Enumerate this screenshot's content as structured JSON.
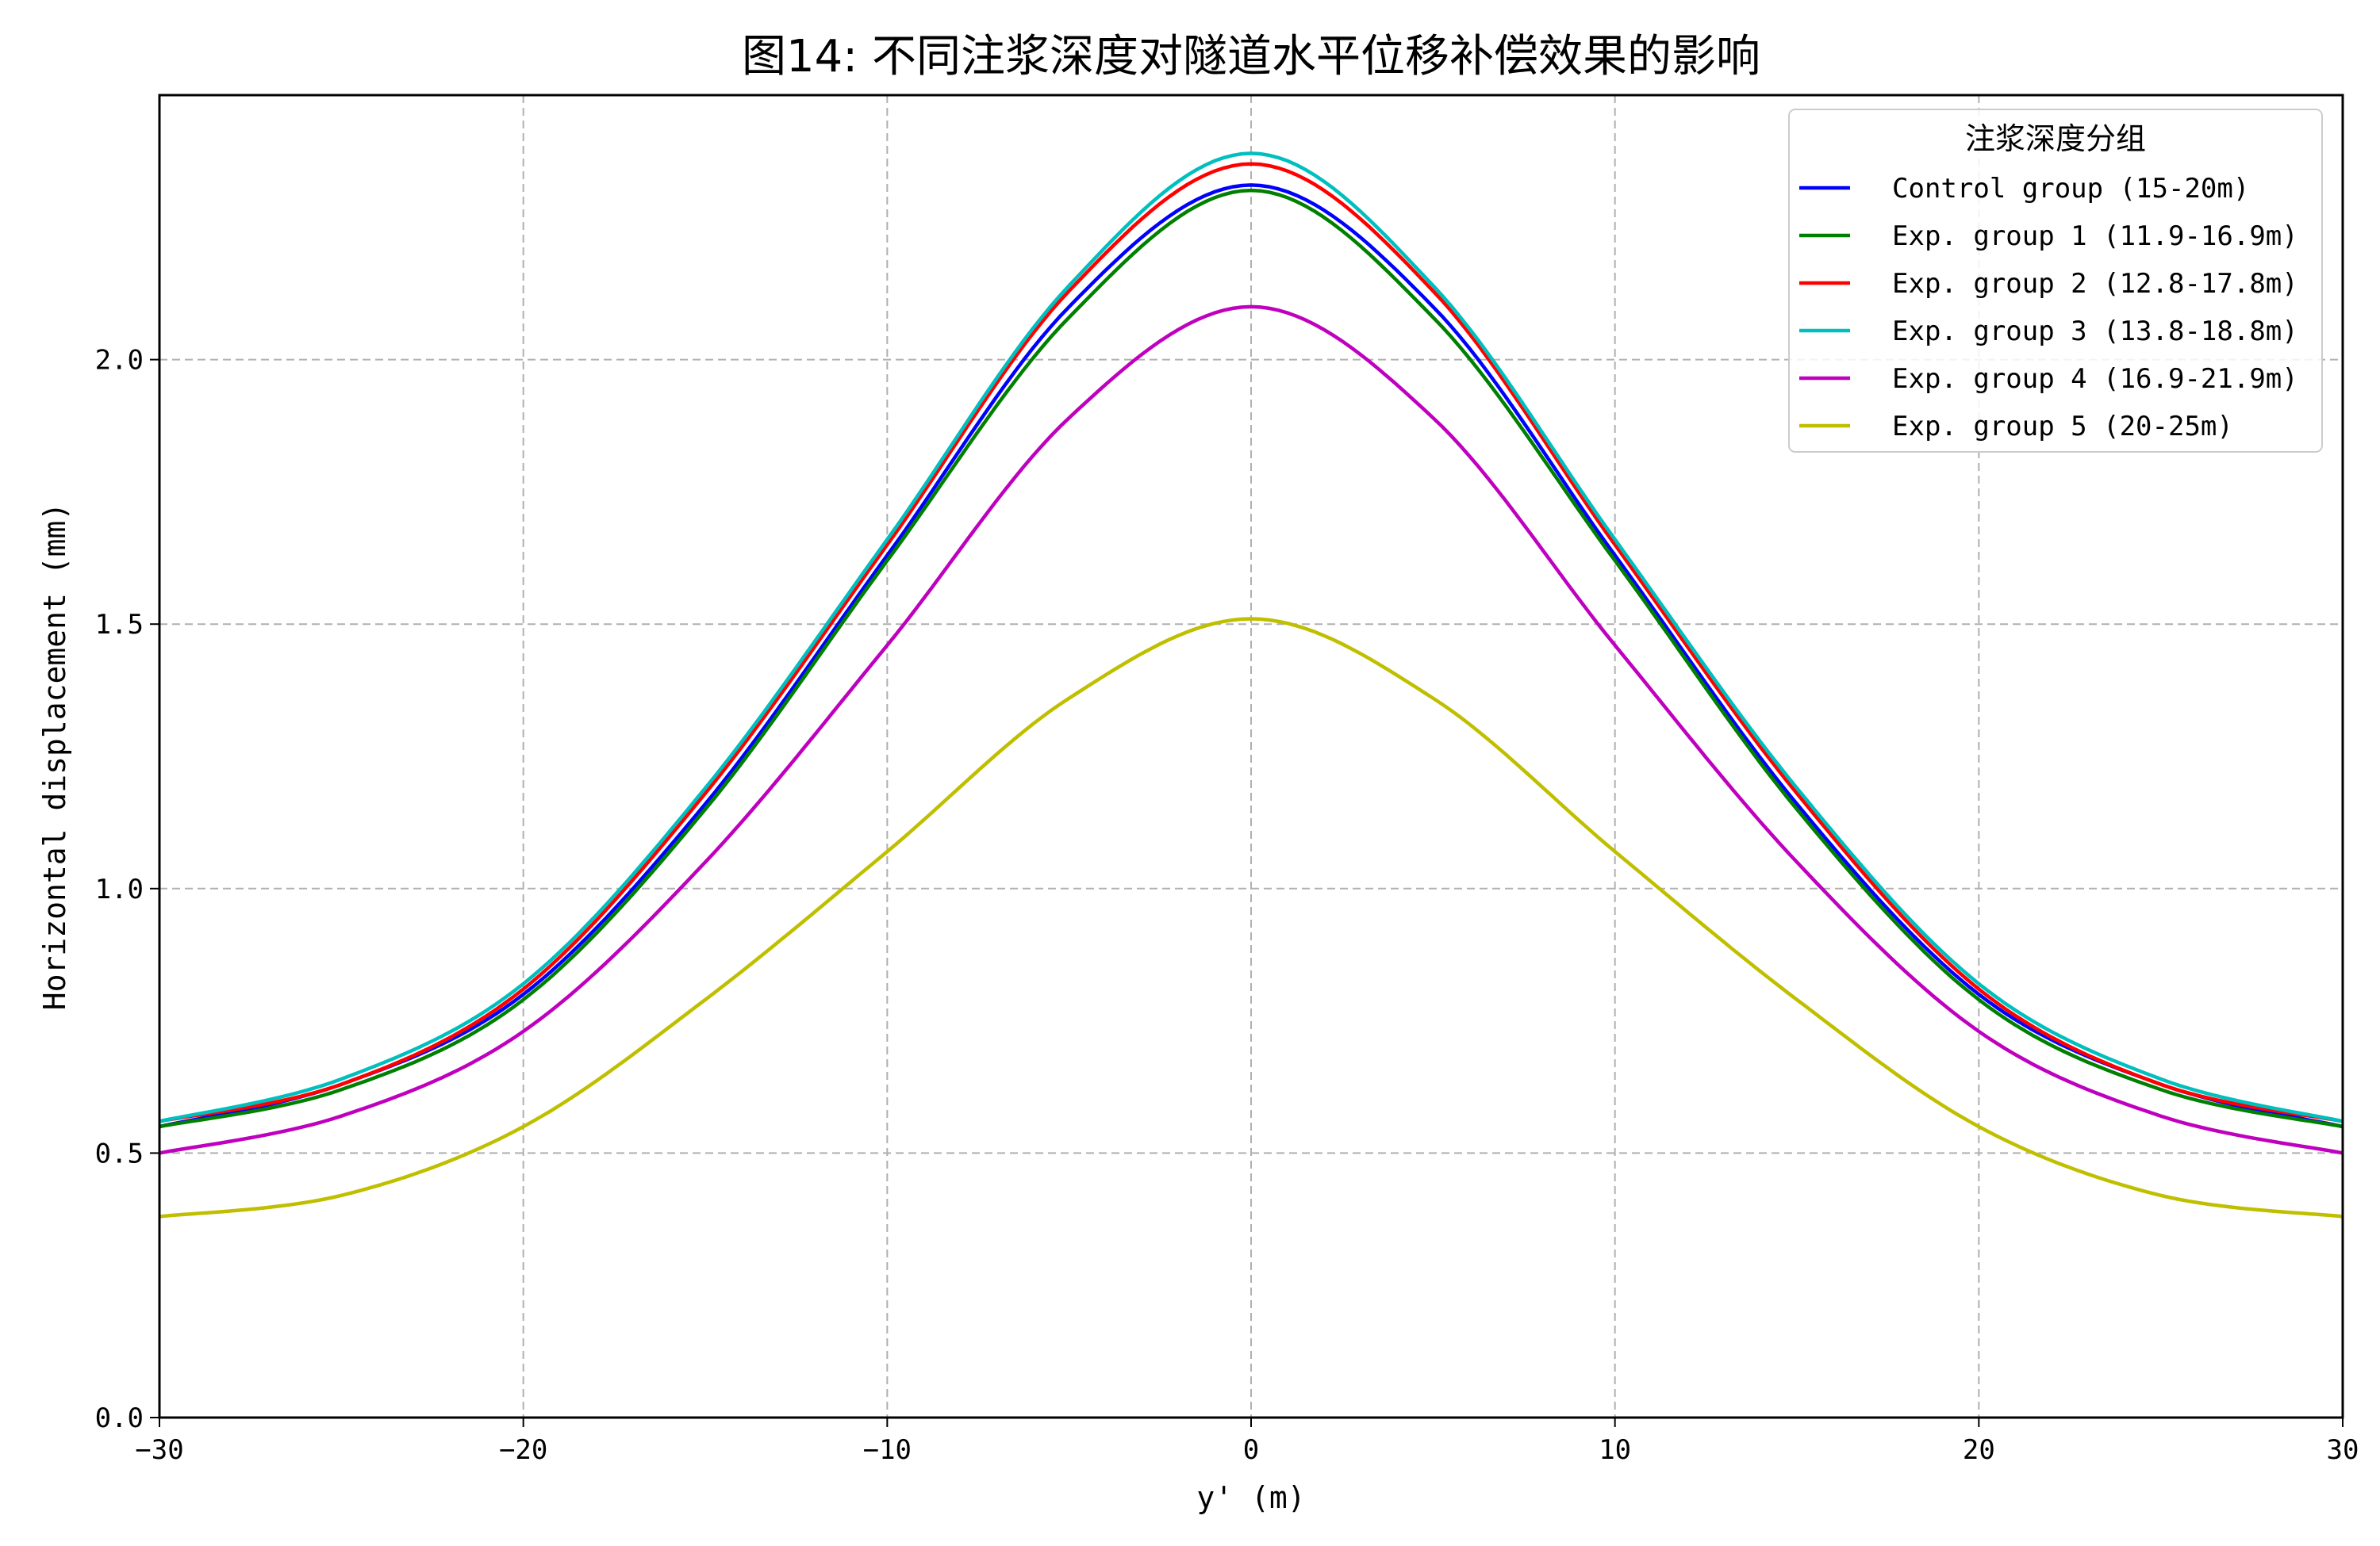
{
  "chart_data": {
    "type": "line",
    "title": "图14: 不同注浆深度对隧道水平位移补偿效果的影响",
    "xlabel": "y' (m)",
    "ylabel": "Horizontal displacement (mm)",
    "xlim": [
      -30,
      30
    ],
    "ylim": [
      0,
      2.5
    ],
    "xticks": [
      -30,
      -20,
      -10,
      0,
      10,
      20,
      30
    ],
    "xtick_labels": [
      "−30",
      "−20",
      "−10",
      "0",
      "10",
      "20",
      "30"
    ],
    "yticks": [
      0.0,
      0.5,
      1.0,
      1.5,
      2.0
    ],
    "ytick_labels": [
      "0.0",
      "0.5",
      "1.0",
      "1.5",
      "2.0"
    ],
    "grid": true,
    "legend_title": "注浆深度分组",
    "legend_position": "top-right",
    "x": [
      -30,
      -25,
      -20,
      -15,
      -10,
      -5,
      0,
      5,
      10,
      15,
      20,
      25,
      30
    ],
    "series": [
      {
        "name": "Control group (15-20m)",
        "color": "#0000ff",
        "values": [
          0.55,
          0.63,
          0.8,
          1.16,
          1.63,
          2.1,
          2.33,
          2.1,
          1.63,
          1.16,
          0.8,
          0.63,
          0.55
        ]
      },
      {
        "name": "Exp. group 1 (11.9-16.9m)",
        "color": "#008000",
        "values": [
          0.55,
          0.62,
          0.79,
          1.15,
          1.62,
          2.08,
          2.32,
          2.08,
          1.62,
          1.15,
          0.79,
          0.62,
          0.55
        ]
      },
      {
        "name": "Exp. group 2 (12.8-17.8m)",
        "color": "#ff0000",
        "values": [
          0.56,
          0.63,
          0.81,
          1.18,
          1.65,
          2.13,
          2.37,
          2.13,
          1.65,
          1.18,
          0.81,
          0.63,
          0.56
        ]
      },
      {
        "name": "Exp. group 3 (13.8-18.8m)",
        "color": "#00bfbf",
        "values": [
          0.56,
          0.64,
          0.82,
          1.19,
          1.66,
          2.14,
          2.39,
          2.14,
          1.66,
          1.19,
          0.82,
          0.64,
          0.56
        ]
      },
      {
        "name": "Exp. group 4 (16.9-21.9m)",
        "color": "#bf00bf",
        "values": [
          0.5,
          0.57,
          0.73,
          1.05,
          1.46,
          1.89,
          2.1,
          1.89,
          1.46,
          1.05,
          0.73,
          0.57,
          0.5
        ]
      },
      {
        "name": "Exp. group 5 (20-25m)",
        "color": "#bfbf00",
        "values": [
          0.38,
          0.42,
          0.55,
          0.79,
          1.07,
          1.36,
          1.51,
          1.36,
          1.07,
          0.79,
          0.55,
          0.42,
          0.38
        ]
      }
    ]
  }
}
